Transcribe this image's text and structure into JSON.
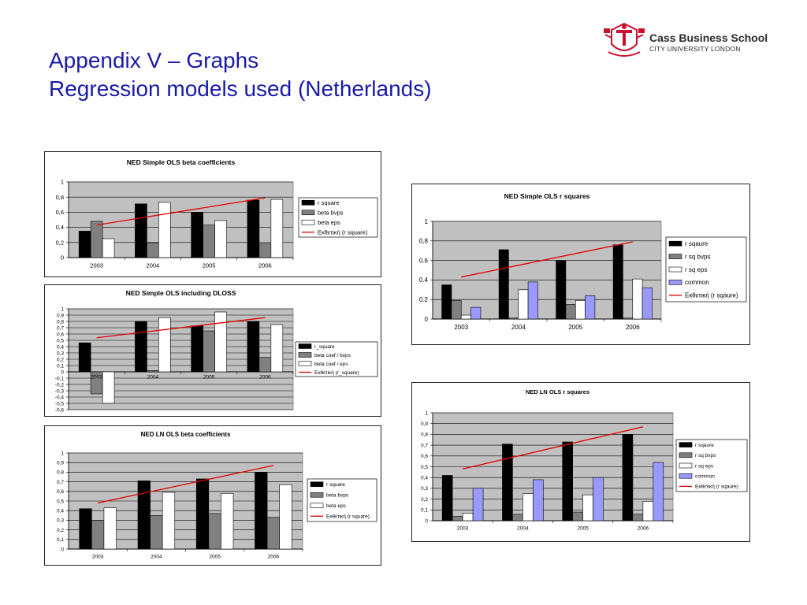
{
  "slide": {
    "title_line1": "Appendix V – Graphs",
    "title_line2": "Regression models used (Netherlands)"
  },
  "logo": {
    "name": "Cass Business School",
    "subname": "CITY UNIVERSITY LONDON",
    "icon": "crest-icon",
    "color": "#c8102e"
  },
  "colors": {
    "title": "#1a1aa8",
    "plot_bg": "#c0c0c0",
    "trend": "#e00000",
    "black": "#000000",
    "gray": "#808080",
    "white": "#ffffff",
    "blue": "#9999ff"
  },
  "chart_data": [
    {
      "id": "c1",
      "type": "bar",
      "title": "NED Simple OLS beta coefficients",
      "categories": [
        "2003",
        "2004",
        "2005",
        "2006"
      ],
      "ylim": [
        0,
        1
      ],
      "yticks": [
        "0",
        "0,2",
        "0,4",
        "0,6",
        "0,8",
        "1"
      ],
      "grid": true,
      "legend": "right",
      "series": [
        {
          "name": "r square",
          "color": "black",
          "values": [
            0.35,
            0.71,
            0.6,
            0.76
          ]
        },
        {
          "name": "beta bvps",
          "color": "gray",
          "values": [
            0.48,
            0.19,
            0.43,
            0.18
          ]
        },
        {
          "name": "beta eps",
          "color": "white",
          "values": [
            0.25,
            0.73,
            0.49,
            0.77
          ]
        }
      ],
      "trend": {
        "name": "Εκθετική (r square)",
        "from": 0.43,
        "to": 0.79
      }
    },
    {
      "id": "c2",
      "type": "bar",
      "title": "NED Simple OLS including DLOSS",
      "categories": [
        "2003",
        "2004",
        "2005",
        "2006"
      ],
      "ylim": [
        -0.6,
        1
      ],
      "yticks": [
        "-0,6",
        "-0,5",
        "-0,4",
        "-0,3",
        "-0,2",
        "-0,1",
        "0",
        "0,1",
        "0,2",
        "0,3",
        "0,4",
        "0,5",
        "0,6",
        "0,7",
        "0,8",
        "0,9",
        "1"
      ],
      "grid": true,
      "legend": "right",
      "series": [
        {
          "name": "r_square",
          "color": "black",
          "values": [
            0.46,
            0.8,
            0.73,
            0.8
          ]
        },
        {
          "name": "beta coef / bvps",
          "color": "gray",
          "values": [
            -0.35,
            0.02,
            0.65,
            0.23
          ]
        },
        {
          "name": "beta coef / eps",
          "color": "white",
          "values": [
            -0.5,
            0.86,
            0.95,
            0.75
          ]
        }
      ],
      "trend": {
        "name": "Εκθετική (r_square)",
        "from": 0.54,
        "to": 0.86
      }
    },
    {
      "id": "c3",
      "type": "bar",
      "title": "NED LN OLS beta coefficients",
      "categories": [
        "2003",
        "2004",
        "2005",
        "2006"
      ],
      "ylim": [
        0,
        1
      ],
      "yticks": [
        "0",
        "0,1",
        "0,2",
        "0,3",
        "0,4",
        "0,5",
        "0,6",
        "0,7",
        "0,8",
        "0,9",
        "1"
      ],
      "grid": true,
      "legend": "right",
      "series": [
        {
          "name": "r square",
          "color": "black",
          "values": [
            0.42,
            0.71,
            0.73,
            0.8
          ]
        },
        {
          "name": "beta bvps",
          "color": "gray",
          "values": [
            0.3,
            0.35,
            0.37,
            0.33
          ]
        },
        {
          "name": "beta eps",
          "color": "white",
          "values": [
            0.43,
            0.59,
            0.58,
            0.67
          ]
        }
      ],
      "trend": {
        "name": "Εκθετική (r square)",
        "from": 0.48,
        "to": 0.87
      }
    },
    {
      "id": "c4",
      "type": "bar",
      "title": "NED Simple OLS r squares",
      "categories": [
        "2003",
        "2004",
        "2005",
        "2006"
      ],
      "ylim": [
        0,
        1
      ],
      "yticks": [
        "0",
        "0.2",
        "0.4",
        "0.6",
        "0,8",
        "1"
      ],
      "grid": true,
      "legend": "right",
      "series": [
        {
          "name": "r sqaure",
          "color": "black",
          "values": [
            0.35,
            0.71,
            0.6,
            0.76
          ]
        },
        {
          "name": "r sq bvps",
          "color": "gray",
          "values": [
            0.19,
            0.01,
            0.15,
            0.01
          ]
        },
        {
          "name": "r sq eps",
          "color": "white",
          "values": [
            0.04,
            0.3,
            0.19,
            0.41
          ]
        },
        {
          "name": "common",
          "color": "blue",
          "values": [
            0.12,
            0.38,
            0.24,
            0.32
          ]
        }
      ],
      "trend": {
        "name": "Εκθετική (r sqaure)",
        "from": 0.43,
        "to": 0.79
      }
    },
    {
      "id": "c5",
      "type": "bar",
      "title": "NED LN OLS r squares",
      "categories": [
        "2003",
        "2004",
        "2005",
        "2006"
      ],
      "ylim": [
        0,
        1
      ],
      "yticks": [
        "0",
        "0,1",
        "0,2",
        "0,3",
        "0,4",
        "0,5",
        "0,6",
        "0,7",
        "0,8",
        "0,9",
        "1"
      ],
      "grid": true,
      "legend": "right",
      "series": [
        {
          "name": "r sqaure",
          "color": "black",
          "values": [
            0.42,
            0.71,
            0.73,
            0.8
          ]
        },
        {
          "name": "r sq bvps",
          "color": "gray",
          "values": [
            0.04,
            0.06,
            0.08,
            0.06
          ]
        },
        {
          "name": "r sq eps",
          "color": "white",
          "values": [
            0.07,
            0.25,
            0.24,
            0.18
          ]
        },
        {
          "name": "common",
          "color": "blue",
          "values": [
            0.3,
            0.38,
            0.4,
            0.54
          ]
        }
      ],
      "trend": {
        "name": "Εκθετική (r sqaure)",
        "from": 0.48,
        "to": 0.87
      }
    }
  ]
}
